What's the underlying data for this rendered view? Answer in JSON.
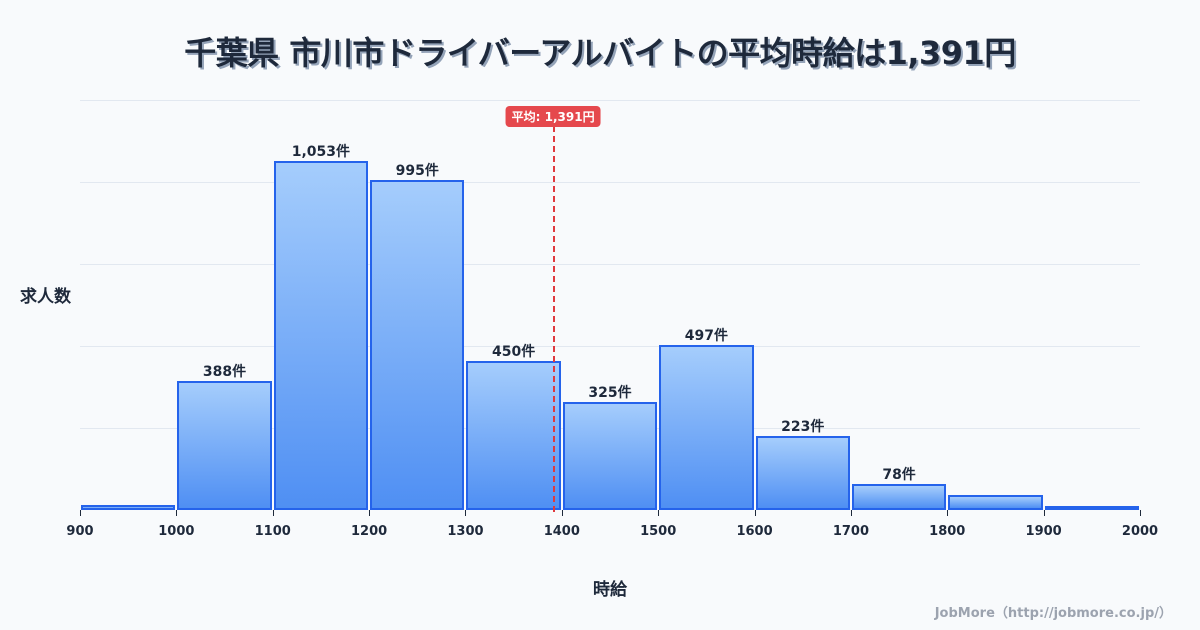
{
  "title": "千葉県 市川市ドライバーアルバイトの平均時給は1,391円",
  "average": {
    "label": "平均: 1,391円",
    "value": 1391
  },
  "axis": {
    "ylabel": "求人数",
    "xlabel": "時給"
  },
  "credit": "JobMore（http://jobmore.co.jp/）",
  "colors": {
    "bar_top": "#a5cdfc",
    "bar_bottom": "#4f8ff3",
    "bar_border": "#2563eb",
    "avg_line": "#e0393e",
    "text": "#1e293b"
  },
  "chart_data": {
    "type": "bar",
    "title": "千葉県 市川市ドライバーアルバイトの平均時給は1,391円",
    "xlabel": "時給",
    "ylabel": "求人数",
    "bins": [
      [
        900,
        1000
      ],
      [
        1000,
        1100
      ],
      [
        1100,
        1200
      ],
      [
        1200,
        1300
      ],
      [
        1300,
        1400
      ],
      [
        1400,
        1500
      ],
      [
        1500,
        1600
      ],
      [
        1600,
        1700
      ],
      [
        1700,
        1800
      ],
      [
        1800,
        1900
      ],
      [
        1900,
        2000
      ]
    ],
    "categories": [
      "900-1000",
      "1000-1100",
      "1100-1200",
      "1200-1300",
      "1300-1400",
      "1400-1500",
      "1500-1600",
      "1600-1700",
      "1700-1800",
      "1800-1900",
      "1900-2000"
    ],
    "values": [
      15,
      388,
      1053,
      995,
      450,
      325,
      497,
      223,
      78,
      45,
      12
    ],
    "labels": [
      "",
      "388件",
      "1,053件",
      "995件",
      "450件",
      "325件",
      "497件",
      "223件",
      "78件",
      "",
      ""
    ],
    "x_ticks": [
      "900",
      "1000",
      "1100",
      "1200",
      "1300",
      "1400",
      "1500",
      "1600",
      "1700",
      "1800",
      "1900",
      "2000"
    ],
    "xlim": [
      900,
      2000
    ],
    "ylim": [
      0,
      1250
    ],
    "grid": true,
    "annotations": [
      {
        "type": "vline",
        "x": 1391,
        "label": "平均: 1,391円"
      }
    ]
  }
}
